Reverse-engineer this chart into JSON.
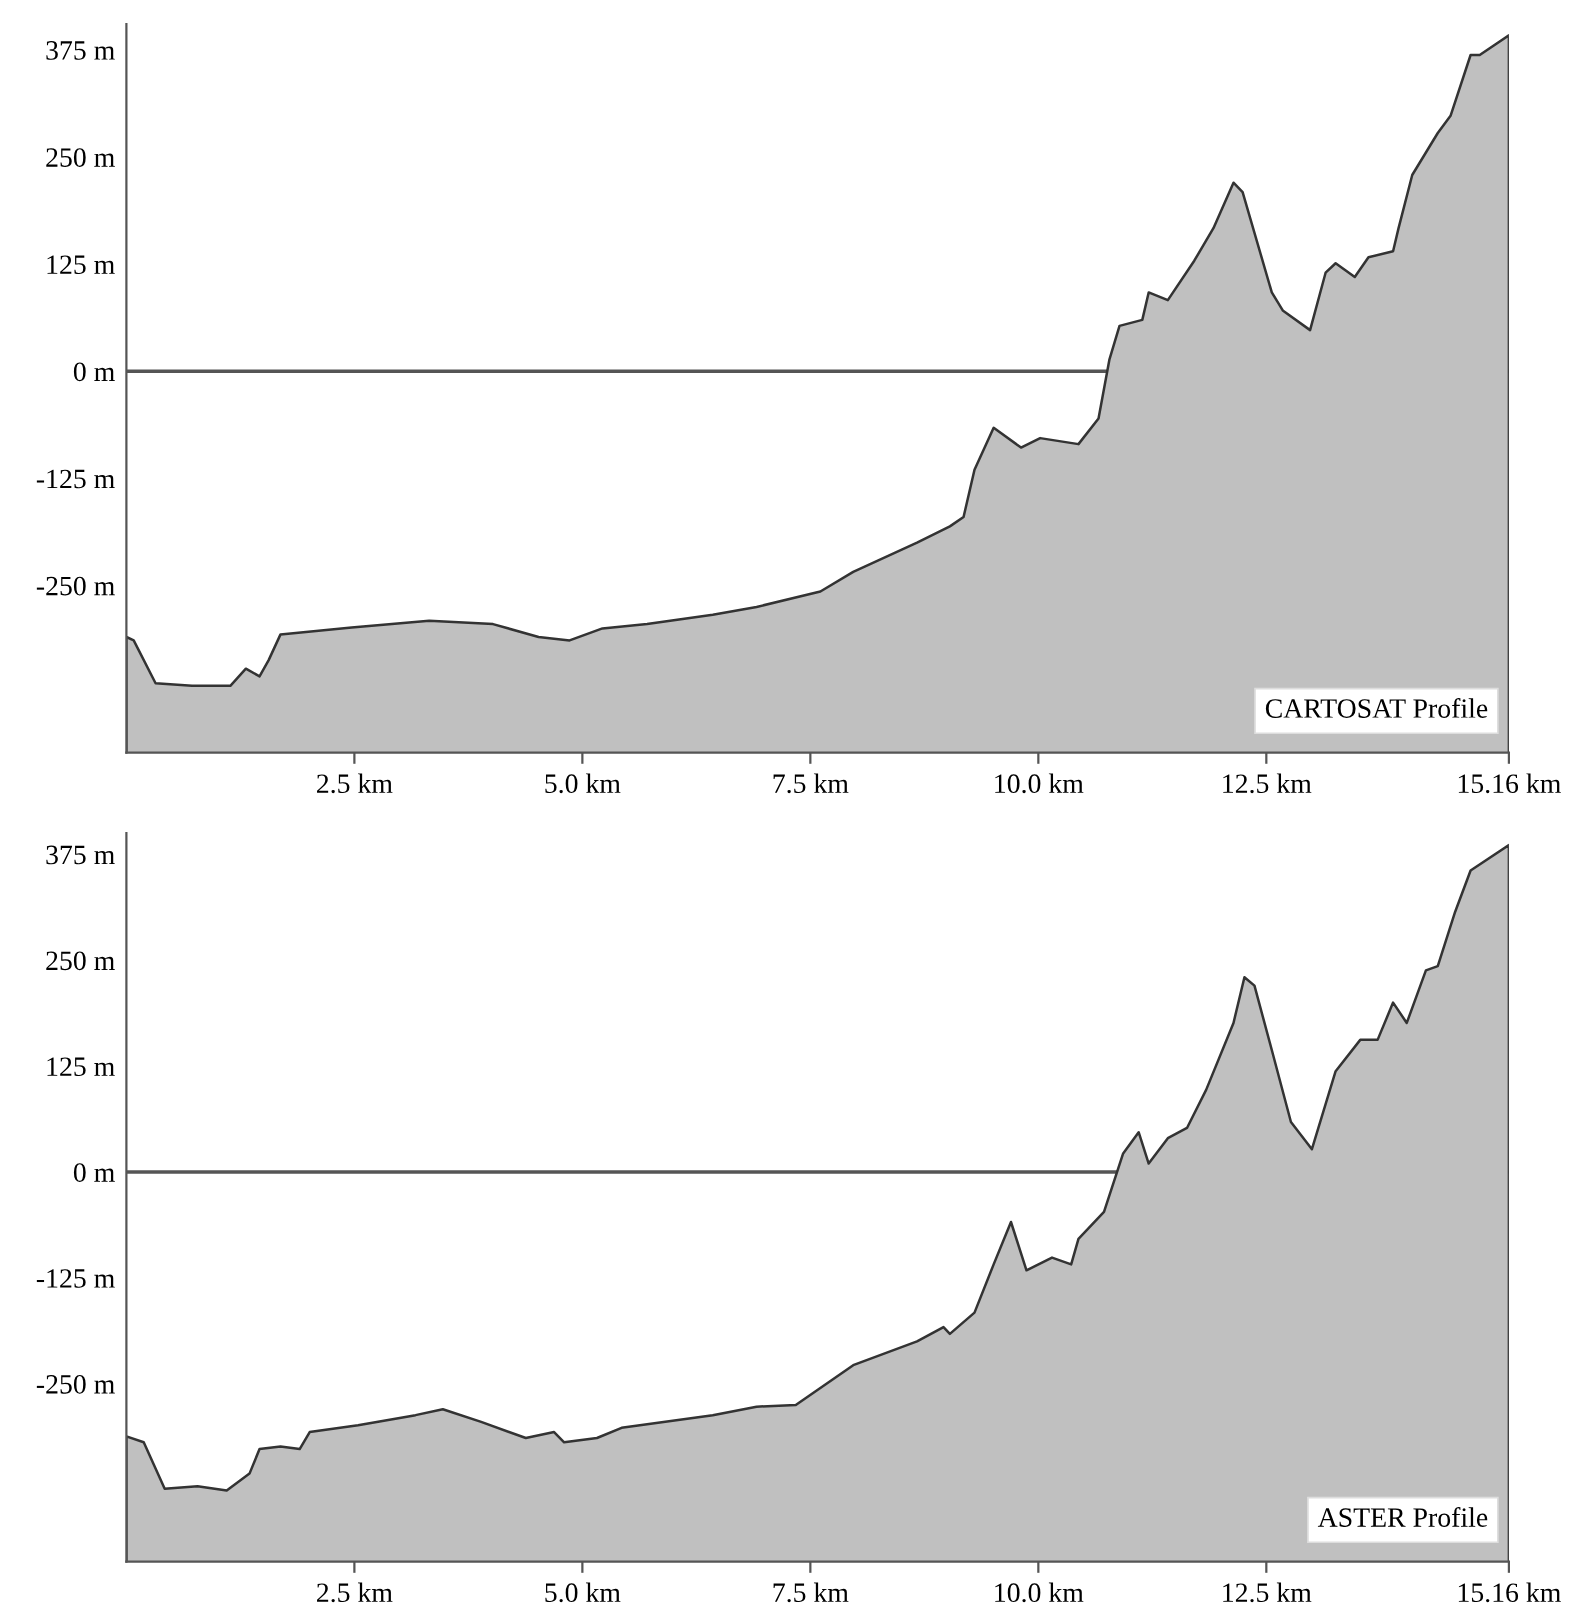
{
  "chart_data": [
    {
      "type": "area",
      "annotations": [
        "CARTOSAT Profile"
      ],
      "grid": false,
      "legend": false,
      "x": [
        0,
        0.08,
        0.32,
        0.72,
        1.14,
        1.31,
        1.46,
        1.56,
        1.69,
        2.47,
        3.32,
        4.02,
        4.52,
        4.86,
        5.22,
        5.71,
        6.43,
        6.91,
        7.61,
        7.97,
        8.67,
        9.03,
        9.18,
        9.3,
        9.51,
        9.81,
        10.02,
        10.44,
        10.66,
        10.78,
        10.89,
        11.14,
        11.21,
        11.42,
        11.71,
        11.92,
        12.14,
        12.24,
        12.56,
        12.68,
        12.98,
        13.15,
        13.26,
        13.47,
        13.62,
        13.89,
        13.95,
        14.1,
        14.38,
        14.52,
        14.74,
        14.84,
        15.16
      ],
      "series": [
        {
          "color": "#c0c0c0",
          "values": [
            -310,
            -314,
            -364,
            -367,
            -367,
            -347,
            -356,
            -337,
            -307,
            -299,
            -291,
            -295,
            -310,
            -314,
            -300,
            -295,
            -284,
            -275,
            -257,
            -234,
            -200,
            -181,
            -170,
            -115,
            -66,
            -89,
            -78,
            -85,
            -55,
            14,
            53,
            60,
            92,
            83,
            129,
            167,
            220,
            209,
            92,
            71,
            48,
            115,
            126,
            110,
            133,
            140,
            167,
            229,
            278,
            298,
            369,
            369,
            392
          ]
        }
      ],
      "xlim": [
        0,
        15.16
      ],
      "xticks": [
        {
          "value": 2.5,
          "label": "2.5 km"
        },
        {
          "value": 5.0,
          "label": "5.0 km"
        },
        {
          "value": 7.5,
          "label": "7.5 km"
        },
        {
          "value": 10.0,
          "label": "10.0 km"
        },
        {
          "value": 12.5,
          "label": "12.5 km"
        },
        {
          "value": 15.16,
          "label": "15.16 km"
        }
      ],
      "ylim": [
        -445,
        405
      ],
      "yticks": [
        {
          "value": -250,
          "label": "-250 m"
        },
        {
          "value": -125,
          "label": "-125 m"
        },
        {
          "value": 0,
          "label": "0 m"
        },
        {
          "value": 125,
          "label": "125 m"
        },
        {
          "value": 250,
          "label": "250 m"
        },
        {
          "value": 375,
          "label": "375 m"
        }
      ],
      "ref_lines": [
        {
          "axis": "y",
          "value": 0,
          "label": null,
          "color": "#555555"
        }
      ]
    },
    {
      "type": "area",
      "annotations": [
        "ASTER Profile"
      ],
      "grid": false,
      "legend": false,
      "x": [
        0,
        0.19,
        0.42,
        0.78,
        1.1,
        1.35,
        1.46,
        1.69,
        1.9,
        2.01,
        2.54,
        3.17,
        3.47,
        3.89,
        4.38,
        4.69,
        4.8,
        5.16,
        5.43,
        6.43,
        6.91,
        7.34,
        7.97,
        8.67,
        8.96,
        9.03,
        9.3,
        9.51,
        9.7,
        9.87,
        10.15,
        10.36,
        10.44,
        10.72,
        10.93,
        11.1,
        11.21,
        11.42,
        11.63,
        11.84,
        12.14,
        12.26,
        12.37,
        12.56,
        12.77,
        13.0,
        13.26,
        13.53,
        13.72,
        13.89,
        14.04,
        14.25,
        14.38,
        14.57,
        14.74,
        15.16
      ],
      "series": [
        {
          "color": "#c0c0c0",
          "values": [
            -312,
            -319,
            -374,
            -371,
            -376,
            -356,
            -327,
            -324,
            -327,
            -307,
            -299,
            -287,
            -280,
            -295,
            -314,
            -307,
            -319,
            -314,
            -302,
            -287,
            -277,
            -275,
            -228,
            -200,
            -183,
            -191,
            -166,
            -109,
            -59,
            -116,
            -101,
            -109,
            -79,
            -47,
            22,
            47,
            10,
            40,
            52,
            97,
            176,
            230,
            220,
            144,
            59,
            27,
            119,
            156,
            156,
            200,
            176,
            238,
            243,
            307,
            356,
            386
          ]
        }
      ],
      "xlim": [
        0,
        15.16
      ],
      "xticks": [
        {
          "value": 2.5,
          "label": "2.5 km"
        },
        {
          "value": 5.0,
          "label": "5.0 km"
        },
        {
          "value": 7.5,
          "label": "7.5 km"
        },
        {
          "value": 10.0,
          "label": "10.0 km"
        },
        {
          "value": 12.5,
          "label": "12.5 km"
        },
        {
          "value": 15.16,
          "label": "15.16 km"
        }
      ],
      "ylim": [
        -460,
        400
      ],
      "yticks": [
        {
          "value": -250,
          "label": "-250 m"
        },
        {
          "value": -125,
          "label": "-125 m"
        },
        {
          "value": 0,
          "label": "0 m"
        },
        {
          "value": 125,
          "label": "125 m"
        },
        {
          "value": 250,
          "label": "250 m"
        },
        {
          "value": 375,
          "label": "375 m"
        }
      ],
      "ref_lines": [
        {
          "axis": "y",
          "value": 0,
          "label": null,
          "color": "#555555"
        }
      ]
    }
  ]
}
